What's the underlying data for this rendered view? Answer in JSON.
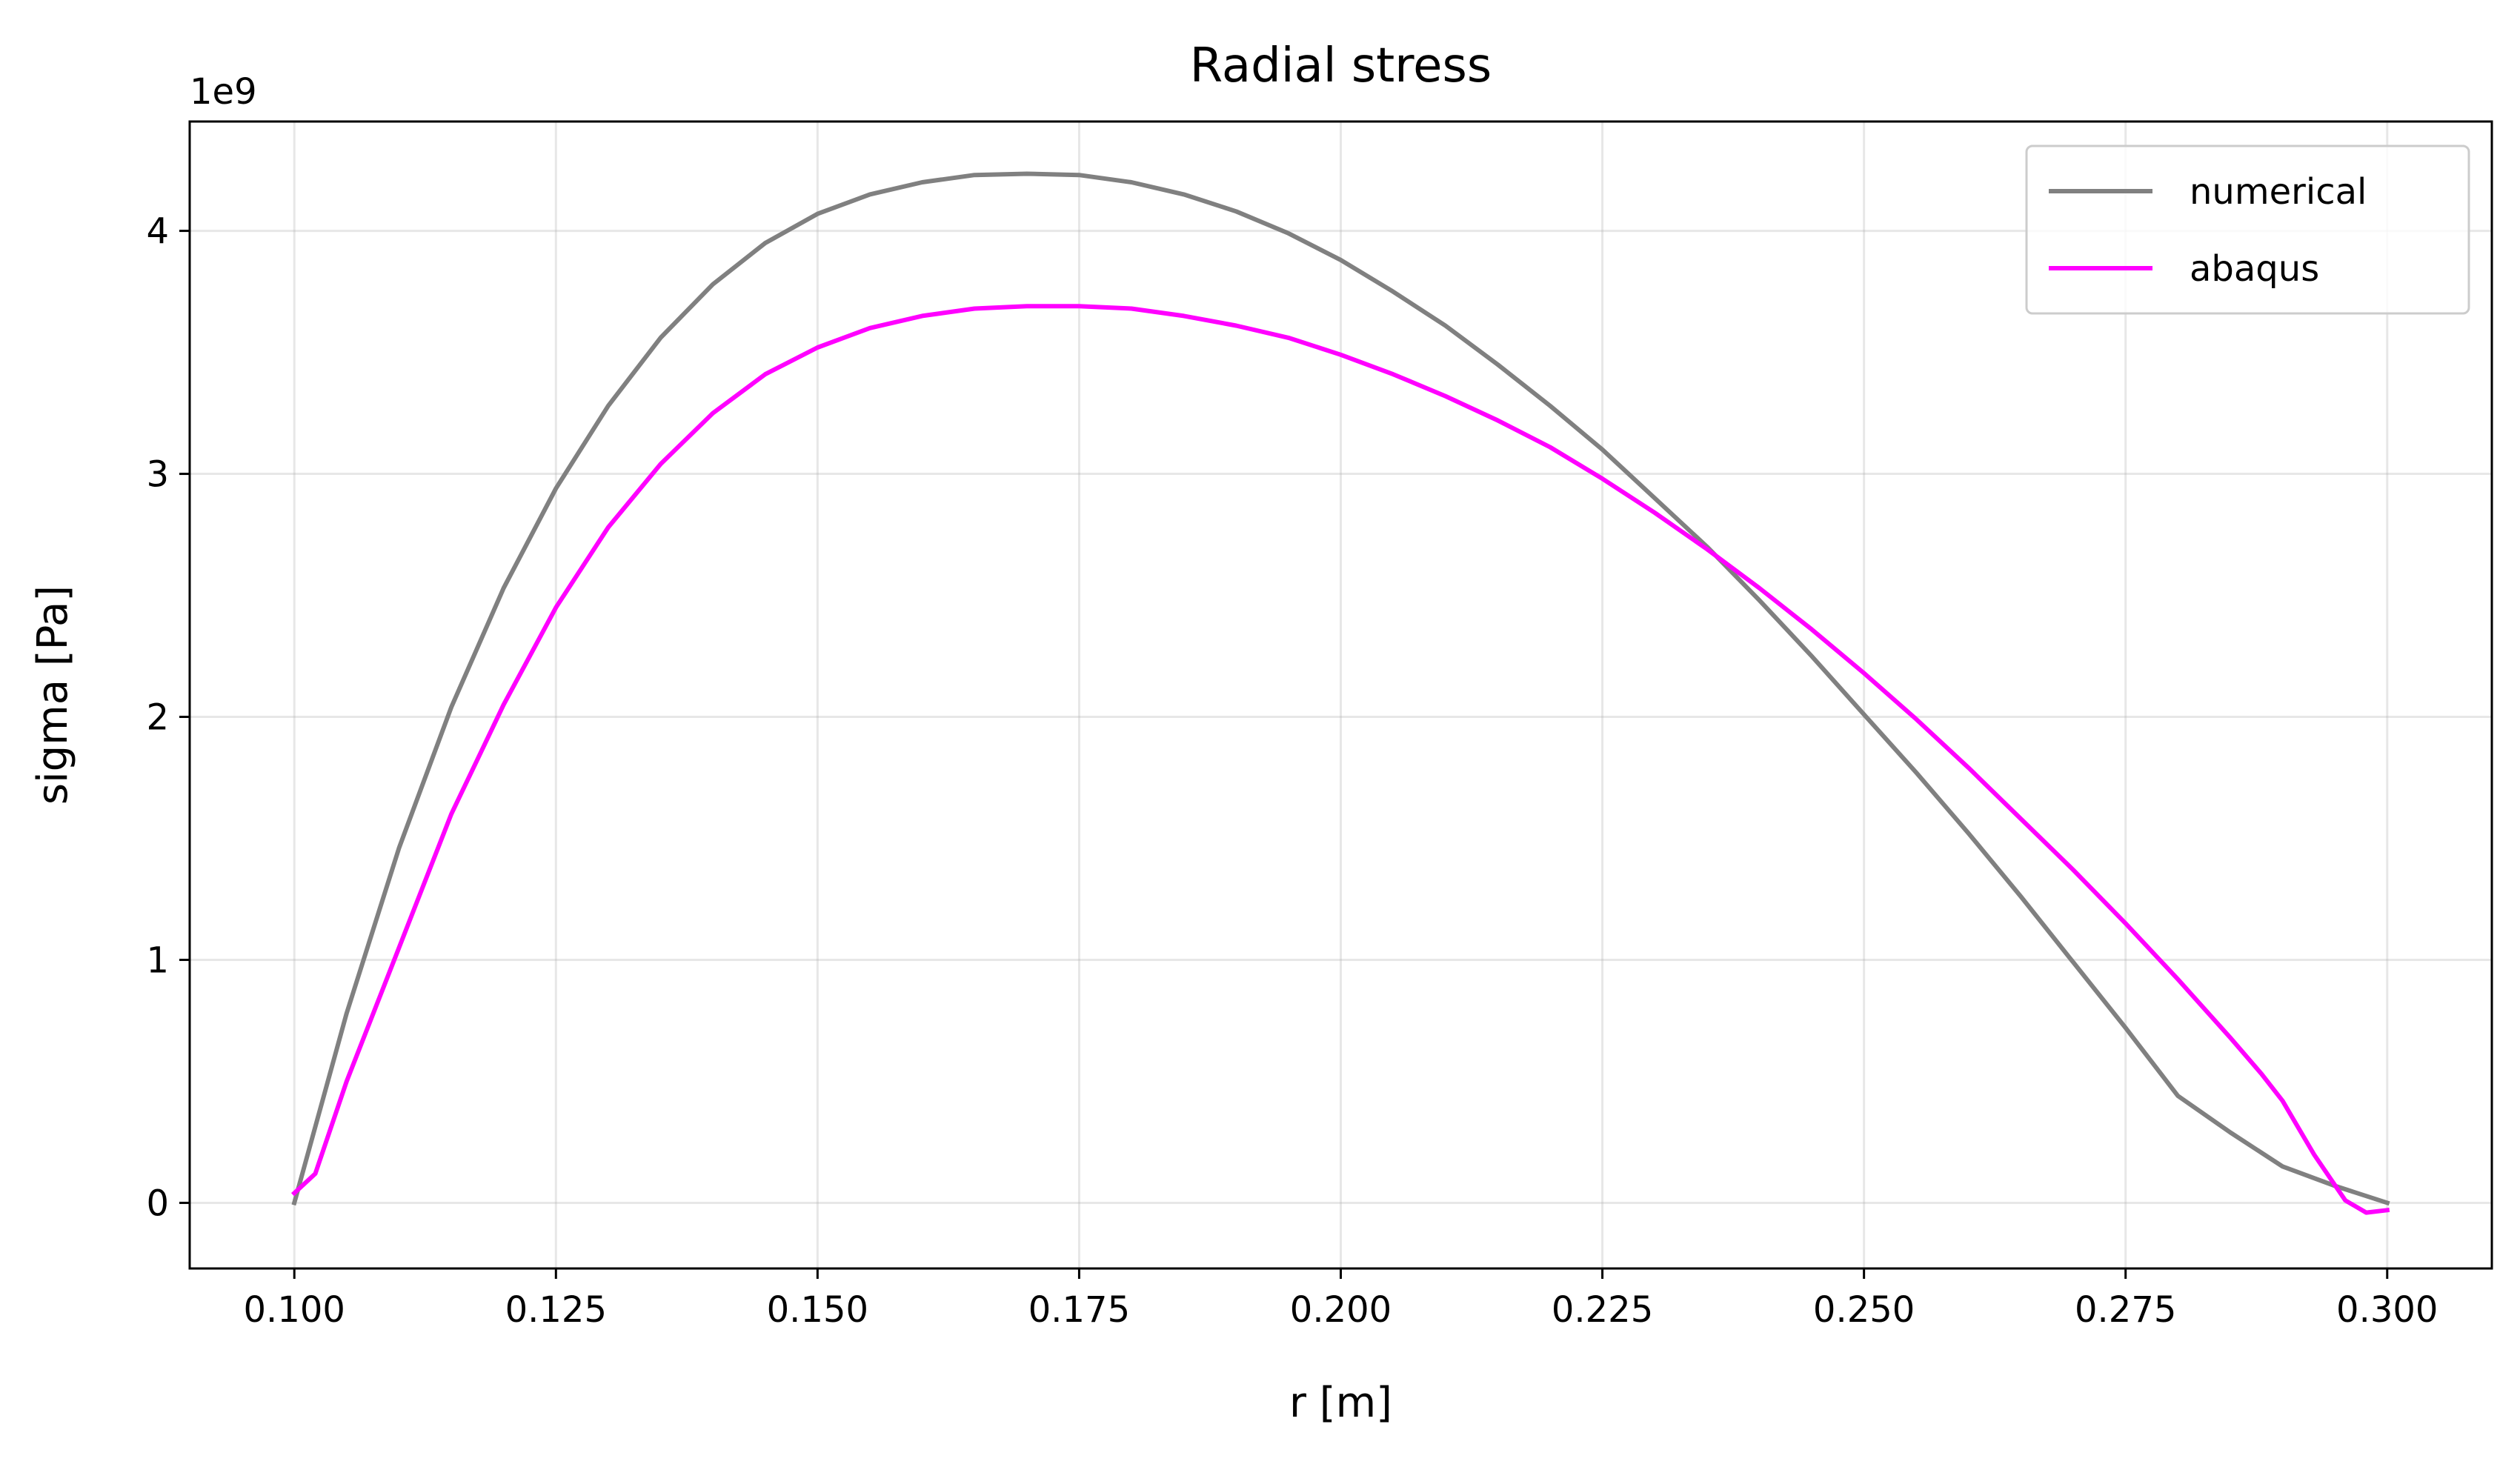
{
  "chart_data": {
    "type": "line",
    "title": "Radial stress",
    "xlabel": "r [m]",
    "ylabel": "sigma [Pa]",
    "y_offset_label": "1e9",
    "xlim": [
      0.09,
      0.31
    ],
    "ylim": [
      -0.27,
      4.45
    ],
    "y_scale_factor": 1000000000,
    "grid": true,
    "legend_position": "top-right",
    "x_ticks": [
      0.1,
      0.125,
      0.15,
      0.175,
      0.2,
      0.225,
      0.25,
      0.275,
      0.3
    ],
    "x_tick_labels": [
      "0.100",
      "0.125",
      "0.150",
      "0.175",
      "0.200",
      "0.225",
      "0.250",
      "0.275",
      "0.300"
    ],
    "y_ticks": [
      0,
      1,
      2,
      3,
      4
    ],
    "y_tick_labels": [
      "0",
      "1",
      "2",
      "3",
      "4"
    ],
    "series": [
      {
        "name": "numerical",
        "color": "#808080",
        "x": [
          0.1,
          0.105,
          0.11,
          0.115,
          0.12,
          0.125,
          0.13,
          0.135,
          0.14,
          0.145,
          0.15,
          0.155,
          0.16,
          0.165,
          0.17,
          0.175,
          0.18,
          0.185,
          0.19,
          0.195,
          0.2,
          0.205,
          0.21,
          0.215,
          0.22,
          0.225,
          0.23,
          0.235,
          0.24,
          0.245,
          0.25,
          0.255,
          0.26,
          0.265,
          0.27,
          0.275,
          0.28,
          0.285,
          0.29,
          0.295,
          0.3
        ],
        "y": [
          0.0,
          0.78,
          1.46,
          2.04,
          2.53,
          2.94,
          3.28,
          3.56,
          3.78,
          3.95,
          4.07,
          4.15,
          4.2,
          4.23,
          4.235,
          4.23,
          4.2,
          4.15,
          4.08,
          3.99,
          3.88,
          3.75,
          3.61,
          3.45,
          3.28,
          3.1,
          2.9,
          2.7,
          2.48,
          2.25,
          2.01,
          1.77,
          1.52,
          1.26,
          0.99,
          0.72,
          0.44,
          0.29,
          0.15,
          0.07,
          0.0
        ]
      },
      {
        "name": "abaqus",
        "color": "#ff00ff",
        "x": [
          0.1,
          0.102,
          0.105,
          0.11,
          0.115,
          0.12,
          0.125,
          0.13,
          0.135,
          0.14,
          0.145,
          0.15,
          0.155,
          0.16,
          0.165,
          0.17,
          0.175,
          0.18,
          0.185,
          0.19,
          0.195,
          0.2,
          0.205,
          0.21,
          0.215,
          0.22,
          0.225,
          0.23,
          0.235,
          0.24,
          0.245,
          0.25,
          0.255,
          0.26,
          0.265,
          0.27,
          0.275,
          0.28,
          0.285,
          0.288,
          0.29,
          0.293,
          0.296,
          0.298,
          0.3
        ],
        "y": [
          0.04,
          0.12,
          0.5,
          1.05,
          1.6,
          2.05,
          2.45,
          2.78,
          3.04,
          3.25,
          3.41,
          3.52,
          3.6,
          3.65,
          3.68,
          3.69,
          3.69,
          3.68,
          3.65,
          3.61,
          3.56,
          3.49,
          3.41,
          3.32,
          3.22,
          3.11,
          2.98,
          2.84,
          2.69,
          2.53,
          2.36,
          2.18,
          1.99,
          1.79,
          1.58,
          1.37,
          1.15,
          0.92,
          0.68,
          0.53,
          0.42,
          0.2,
          0.01,
          -0.04,
          -0.03
        ]
      }
    ]
  }
}
